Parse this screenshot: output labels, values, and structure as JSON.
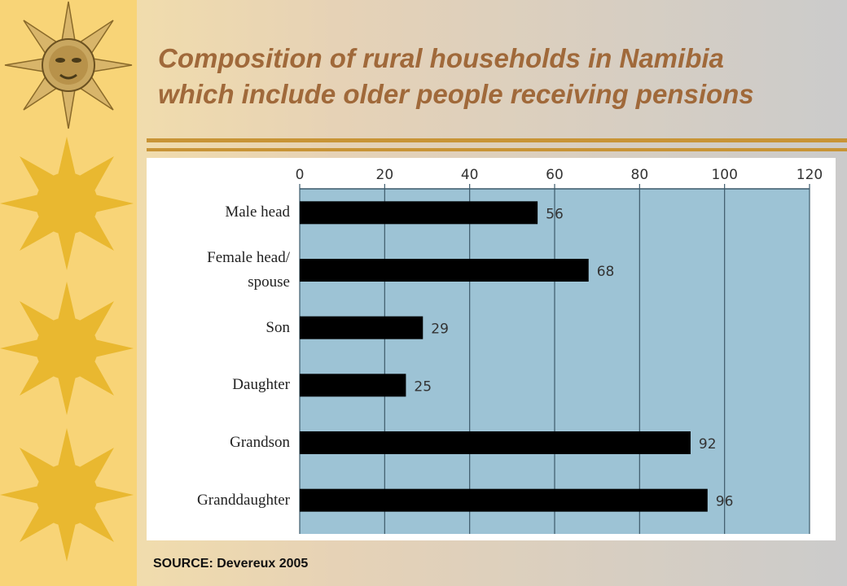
{
  "slide": {
    "title_line1": "Composition of rural households in Namibia",
    "title_line2": "which include older people receiving pensions",
    "source": "SOURCE: Devereux 2005"
  },
  "colors": {
    "sidebar": "#f8d477",
    "title": "#a0693a",
    "plot_bg": "#9dc3d5",
    "bar": "#000000",
    "rule": "#c89436",
    "sun": "#e9b830"
  },
  "icons": [
    "sun-face-icon",
    "sun-icon",
    "sun-icon",
    "sun-icon"
  ],
  "chart_data": {
    "type": "bar",
    "orientation": "horizontal",
    "categories": [
      "Male head",
      "Female head/\nspouse",
      "Son",
      "Daughter",
      "Grandson",
      "Granddaughter"
    ],
    "values": [
      56,
      68,
      29,
      25,
      92,
      96
    ],
    "xlim": [
      0,
      120
    ],
    "xticks": [
      "0",
      "20",
      "40",
      "60",
      "80",
      "100",
      "120"
    ],
    "grid": true,
    "axis_position": "top"
  }
}
